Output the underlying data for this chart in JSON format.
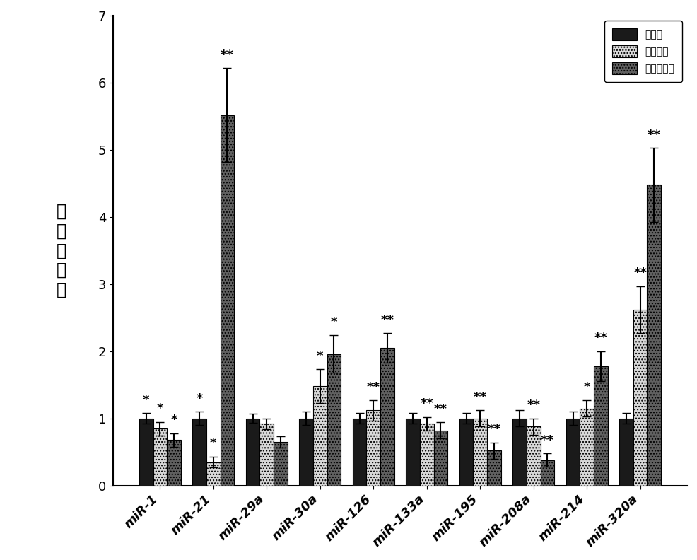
{
  "categories": [
    "miR-1",
    "miR-21",
    "miR-29a",
    "miR-30a",
    "miR-126",
    "miR-133a",
    "miR-195",
    "miR-208a",
    "miR-214",
    "miR-320a"
  ],
  "group1_values": [
    1.0,
    1.0,
    1.0,
    1.0,
    1.0,
    1.0,
    1.0,
    1.0,
    1.0,
    1.0
  ],
  "group2_values": [
    0.85,
    0.35,
    0.92,
    1.48,
    1.12,
    0.92,
    1.0,
    0.88,
    1.15,
    2.62
  ],
  "group3_values": [
    0.68,
    5.52,
    0.65,
    1.96,
    2.05,
    0.82,
    0.52,
    0.38,
    1.78,
    4.48
  ],
  "group1_errors": [
    0.08,
    0.1,
    0.07,
    0.1,
    0.08,
    0.08,
    0.08,
    0.12,
    0.1,
    0.08
  ],
  "group2_errors": [
    0.1,
    0.08,
    0.08,
    0.25,
    0.15,
    0.1,
    0.12,
    0.12,
    0.12,
    0.35
  ],
  "group3_errors": [
    0.1,
    0.7,
    0.08,
    0.28,
    0.22,
    0.12,
    0.12,
    0.1,
    0.22,
    0.55
  ],
  "group1_color": "#1a1a1a",
  "group2_color": "#d8d8d8",
  "group2_hatch": "....",
  "group3_color": "#606060",
  "group3_hatch": "....",
  "legend_label1": "对照组",
  "legend_label2": "高危人群",
  "legend_label3": "冠心病患者",
  "ylabel_chars": [
    "相",
    "对",
    "表",
    "达",
    "量"
  ],
  "ylim": [
    0,
    7
  ],
  "yticks": [
    0,
    1,
    2,
    3,
    4,
    5,
    6,
    7
  ],
  "bar_width": 0.26,
  "sig_above_g1": [
    "*",
    "*",
    "",
    "",
    "",
    "",
    "",
    "",
    "",
    ""
  ],
  "sig_above_g2": [
    "*",
    "*",
    "",
    "*",
    "**",
    "**",
    "**",
    "**",
    "*",
    "**"
  ],
  "sig_above_g3": [
    "*",
    "**",
    "",
    "*",
    "**",
    "**",
    "**",
    "**",
    "**",
    "**"
  ],
  "fontsize_ticks": 13,
  "fontsize_ylabel": 17,
  "fontsize_legend": 15,
  "fontsize_sig": 13
}
